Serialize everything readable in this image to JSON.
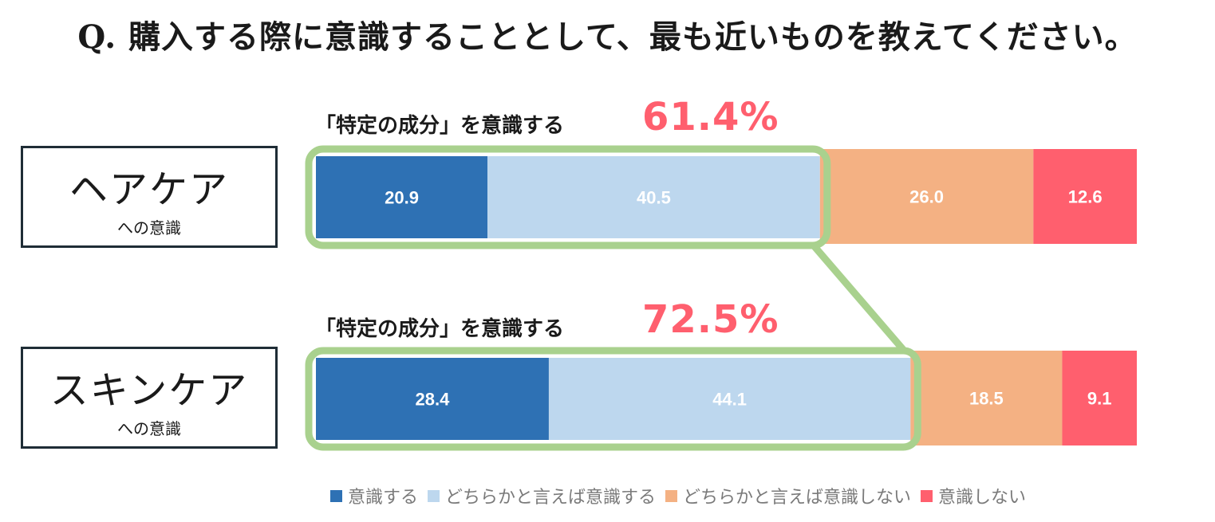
{
  "title": "Q. 購入する際に意識することとして、最も近いものを教えてください。",
  "colors": {
    "series": [
      "#2e71b4",
      "#bdd7ee",
      "#f4b183",
      "#ff5f6e"
    ],
    "highlight": "#a9d18e",
    "percent": "#ff5f6e"
  },
  "categories": [
    {
      "name": "ヘアケア",
      "sub": "への意識",
      "callout_label": "「特定の成分」を意識する",
      "callout_pct": "61.4%"
    },
    {
      "name": "スキンケア",
      "sub": "への意識",
      "callout_label": "「特定の成分」を意識する",
      "callout_pct": "72.5%"
    }
  ],
  "chart_data": {
    "type": "bar",
    "orientation": "horizontal",
    "stacked": true,
    "normalized": true,
    "categories": [
      "ヘアケア",
      "スキンケア"
    ],
    "series": [
      {
        "name": "意識する",
        "values": [
          20.9,
          28.4
        ]
      },
      {
        "name": "どちらかと言えば意識する",
        "values": [
          40.5,
          44.1
        ]
      },
      {
        "name": "どちらかと言えば意識しない",
        "values": [
          26.0,
          18.5
        ]
      },
      {
        "name": "意識しない",
        "values": [
          12.6,
          9.1
        ]
      }
    ],
    "labels": [
      [
        "20.9",
        "40.5",
        "26.0",
        "12.6"
      ],
      [
        "28.4",
        "44.1",
        "18.5",
        "9.1"
      ]
    ],
    "highlight_sum": [
      "61.4%",
      "72.5%"
    ],
    "legend_position": "bottom"
  }
}
